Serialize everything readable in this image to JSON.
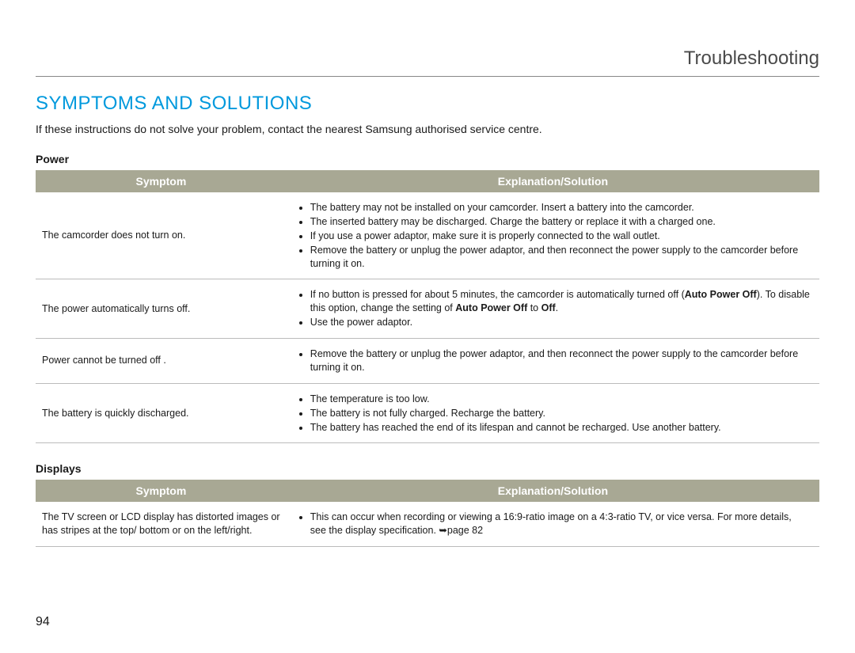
{
  "chapter_title": "Troubleshooting",
  "section_title": "SYMPTOMS AND SOLUTIONS",
  "intro": "If these instructions do not solve your problem, contact the nearest Samsung authorised service centre.",
  "page_number": "94",
  "colors": {
    "section_title": "#0099dd",
    "header_bg": "#a8a894",
    "header_text": "#ffffff",
    "border": "#bbbbbb",
    "body_text": "#1a1a1a",
    "chapter_text": "#4a4a4a"
  },
  "tables": [
    {
      "title": "Power",
      "headers": {
        "symptom": "Symptom",
        "solution": "Explanation/Solution"
      },
      "rows": [
        {
          "symptom": "The camcorder does not turn on.",
          "solutions": [
            "The battery may not be installed on your camcorder. Insert a battery into the camcorder.",
            "The inserted battery may be discharged. Charge the battery or replace it with a charged one.",
            "If you use a power adaptor, make sure it is properly connected to the wall outlet.",
            "Remove the battery or unplug the power adaptor, and then reconnect the power supply to the camcorder before turning it on."
          ]
        },
        {
          "symptom": "The power automatically turns off.",
          "solutions_html": [
            "If no button is pressed for about 5 minutes, the camcorder is automatically turned off (<b>Auto Power Off</b>). To disable this option, change the setting of <b>Auto Power Off</b> to <b>Off</b>.",
            "Use the power adaptor."
          ]
        },
        {
          "symptom": "Power cannot be turned off .",
          "solutions": [
            "Remove the battery or unplug the power adaptor, and then reconnect the power supply to the camcorder before turning it on."
          ]
        },
        {
          "symptom": "The battery is quickly discharged.",
          "solutions": [
            "The temperature is too low.",
            "The battery is not fully charged. Recharge the battery.",
            "The battery has reached the end of its lifespan and cannot be recharged. Use another battery."
          ]
        }
      ]
    },
    {
      "title": "Displays",
      "headers": {
        "symptom": "Symptom",
        "solution": "Explanation/Solution"
      },
      "rows": [
        {
          "symptom": "The TV screen or LCD display has distorted images or has stripes at the top/ bottom or on the left/right.",
          "solutions_html": [
            "This can occur when recording or viewing a 16:9-ratio image on a 4:3-ratio TV, or vice versa. For more details, see the display specification. ➥page 82"
          ]
        }
      ]
    }
  ]
}
